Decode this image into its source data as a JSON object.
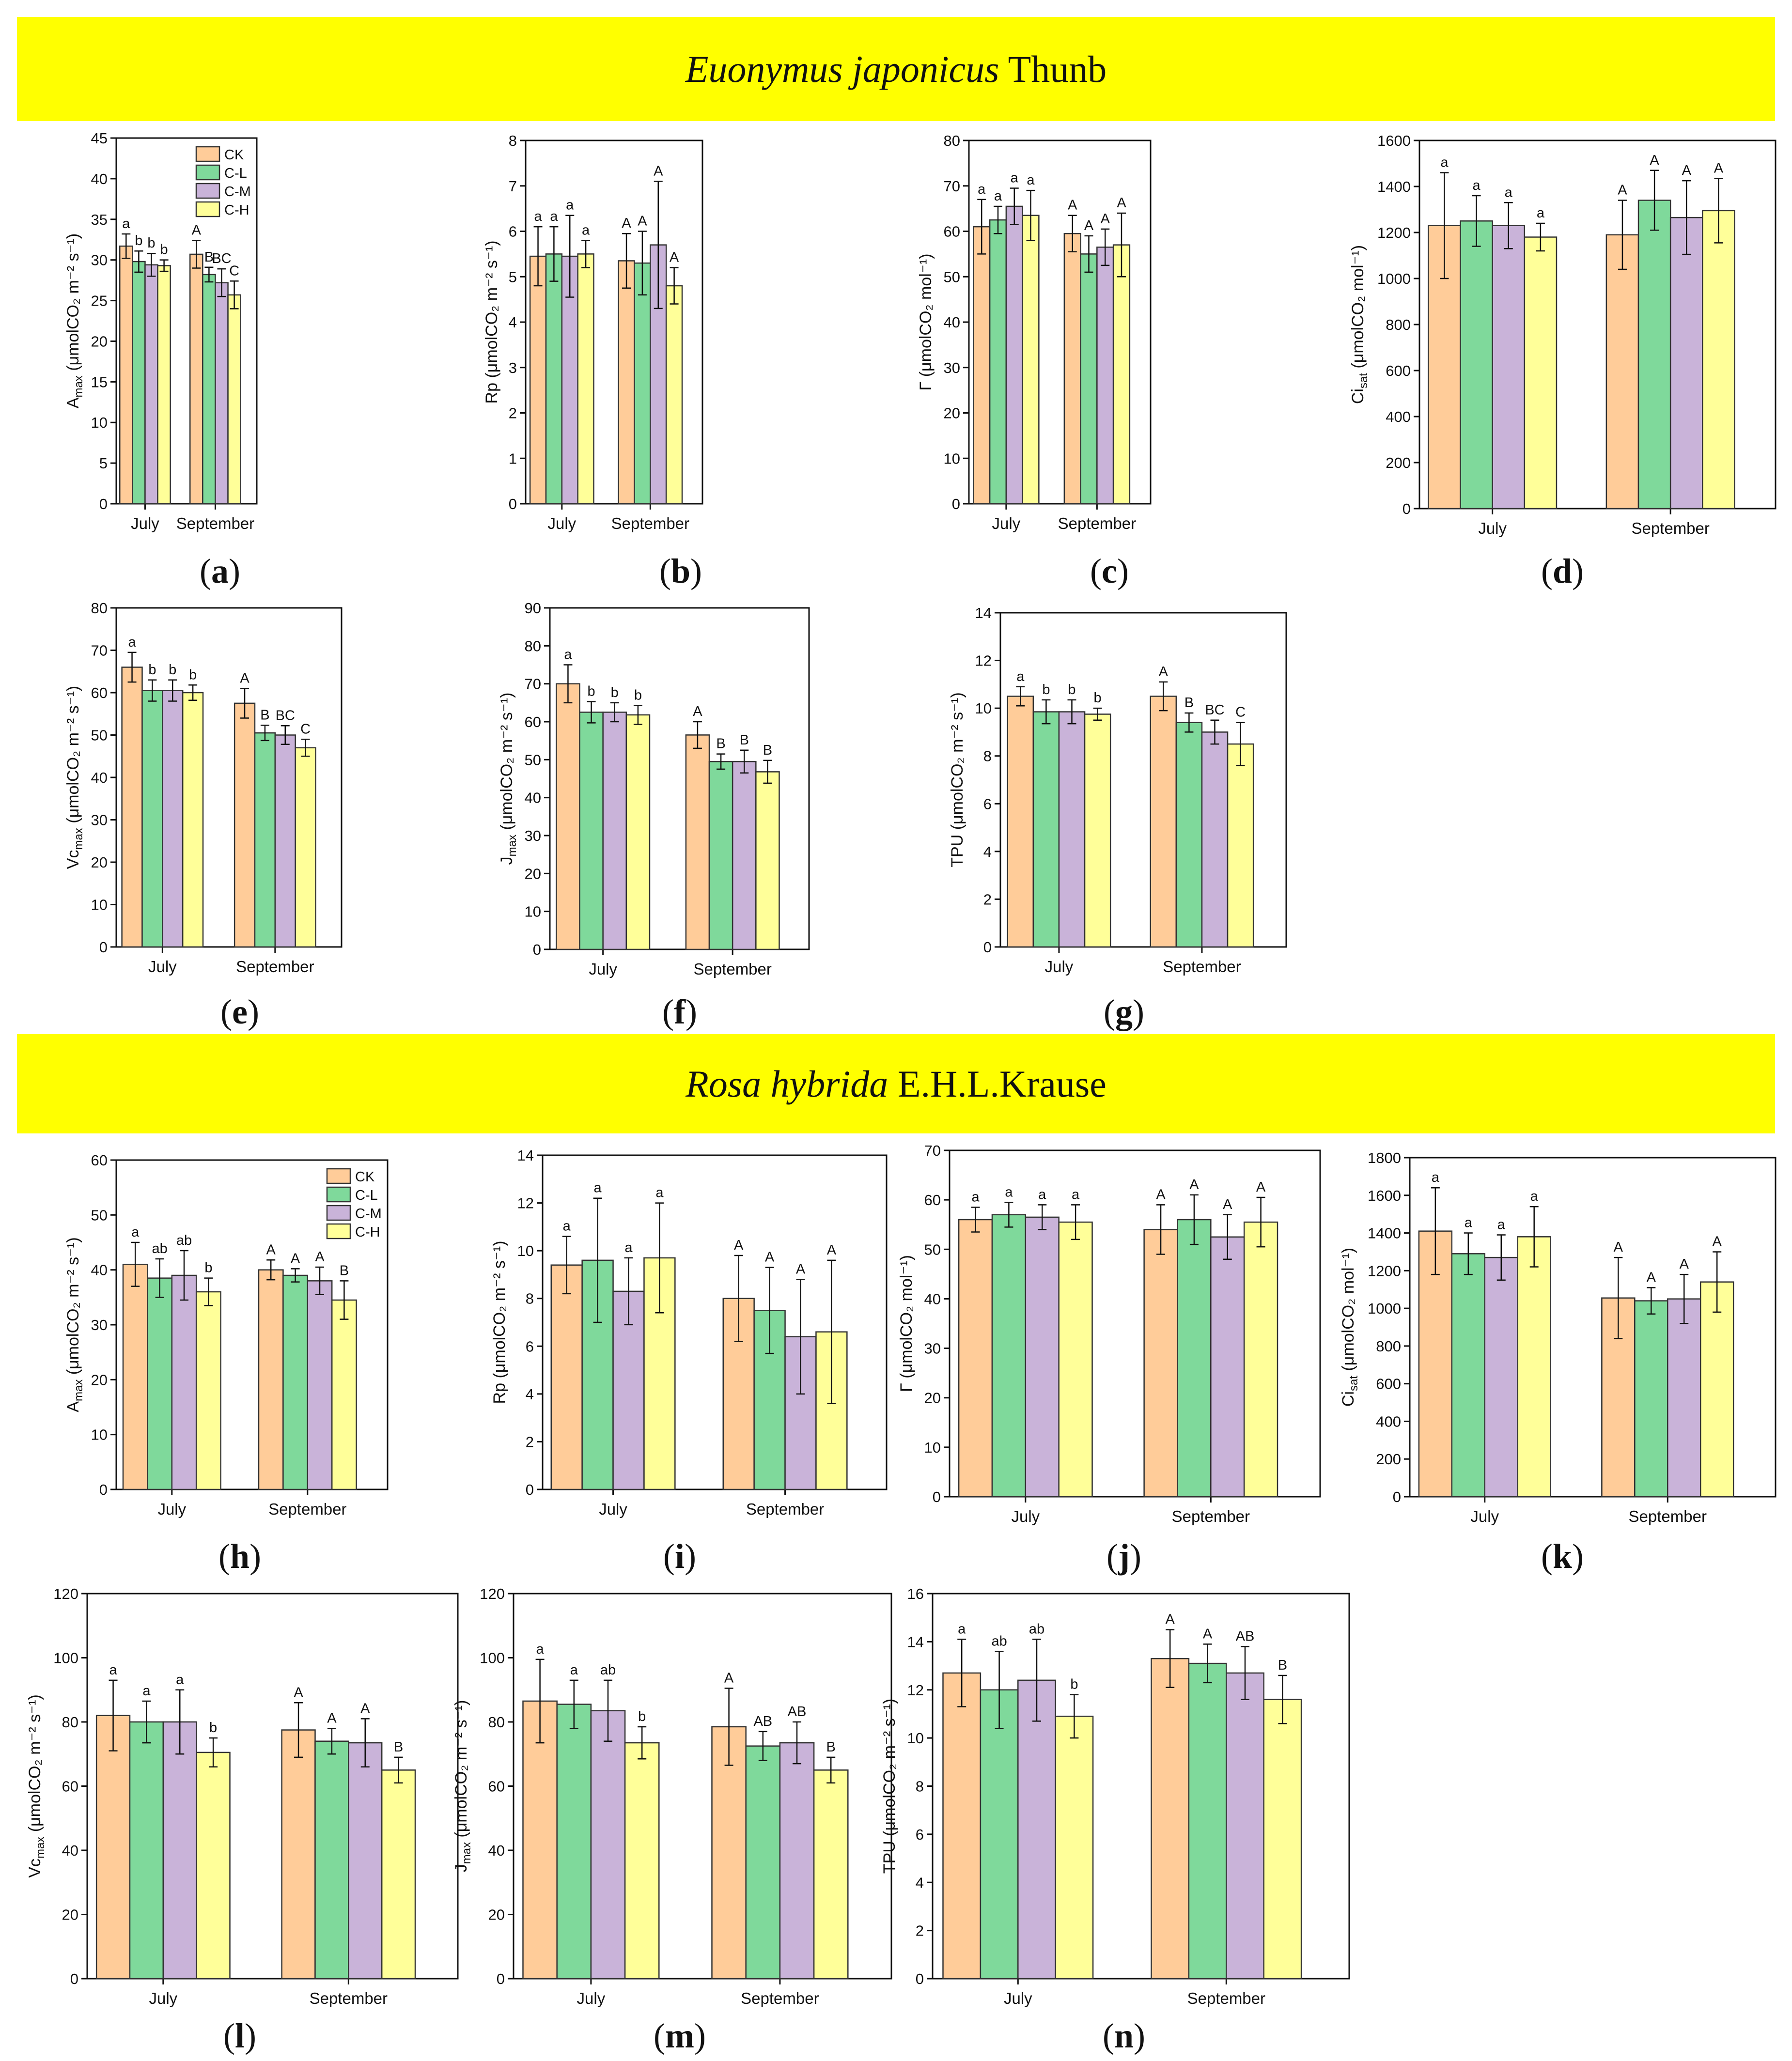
{
  "colors": {
    "CK": "#ffcc99",
    "C-L": "#7fd99b",
    "C-M": "#c9b3d9",
    "C-H": "#ffff99",
    "banner": "#ffff00"
  },
  "sections": [
    {
      "species": "Euonymus japonicus",
      "author": " Thunb"
    },
    {
      "species": "Rosa hybrida",
      "author": " E.H.L.Krause"
    }
  ],
  "chart_data": [
    {
      "id": "a",
      "label": "a",
      "type": "bar",
      "ylabel": "A_max (μmolCO₂ m⁻² s⁻¹)",
      "ylim": [
        0,
        45
      ],
      "yticks": [
        0,
        5,
        10,
        15,
        20,
        25,
        30,
        35,
        40,
        45
      ],
      "categories": [
        "July",
        "September"
      ],
      "legend": [
        "CK",
        "C-L",
        "C-M",
        "C-H"
      ],
      "legend_position": "top-right",
      "series": [
        {
          "name": "CK",
          "values": [
            31.7,
            30.7
          ],
          "errors": [
            1.5,
            1.7
          ],
          "letters": [
            "a",
            "A"
          ]
        },
        {
          "name": "C-L",
          "values": [
            29.8,
            28.2
          ],
          "errors": [
            1.3,
            0.9
          ],
          "letters": [
            "b",
            "B"
          ]
        },
        {
          "name": "C-M",
          "values": [
            29.4,
            27.2
          ],
          "errors": [
            1.4,
            1.7
          ],
          "letters": [
            "b",
            "BC"
          ]
        },
        {
          "name": "C-H",
          "values": [
            29.3,
            25.7
          ],
          "errors": [
            0.7,
            1.7
          ],
          "letters": [
            "b",
            "C"
          ]
        }
      ]
    },
    {
      "id": "b",
      "label": "b",
      "type": "bar",
      "ylabel": "Rp (μmolCO₂ m⁻² s⁻¹)",
      "ylim": [
        0,
        8
      ],
      "yticks": [
        0,
        1,
        2,
        3,
        4,
        5,
        6,
        7,
        8
      ],
      "categories": [
        "July",
        "September"
      ],
      "series": [
        {
          "name": "CK",
          "values": [
            5.45,
            5.35
          ],
          "errors": [
            0.65,
            0.6
          ],
          "letters": [
            "a",
            "A"
          ]
        },
        {
          "name": "C-L",
          "values": [
            5.5,
            5.3
          ],
          "errors": [
            0.6,
            0.7
          ],
          "letters": [
            "a",
            "A"
          ]
        },
        {
          "name": "C-M",
          "values": [
            5.45,
            5.7
          ],
          "errors": [
            0.9,
            1.4
          ],
          "letters": [
            "a",
            "A"
          ]
        },
        {
          "name": "C-H",
          "values": [
            5.5,
            4.8
          ],
          "errors": [
            0.3,
            0.4
          ],
          "letters": [
            "a",
            "A"
          ]
        }
      ]
    },
    {
      "id": "c",
      "label": "c",
      "type": "bar",
      "ylabel": "Γ (μmolCO₂ mol⁻¹)",
      "ylim": [
        0,
        80
      ],
      "yticks": [
        0,
        10,
        20,
        30,
        40,
        50,
        60,
        70,
        80
      ],
      "categories": [
        "July",
        "September"
      ],
      "series": [
        {
          "name": "CK",
          "values": [
            61,
            59.5
          ],
          "errors": [
            6,
            4
          ],
          "letters": [
            "a",
            "A"
          ]
        },
        {
          "name": "C-L",
          "values": [
            62.5,
            55
          ],
          "errors": [
            3,
            4
          ],
          "letters": [
            "a",
            "A"
          ]
        },
        {
          "name": "C-M",
          "values": [
            65.5,
            56.5
          ],
          "errors": [
            4,
            4
          ],
          "letters": [
            "a",
            "A"
          ]
        },
        {
          "name": "C-H",
          "values": [
            63.5,
            57
          ],
          "errors": [
            5.5,
            7
          ],
          "letters": [
            "a",
            "A"
          ]
        }
      ]
    },
    {
      "id": "d",
      "label": "d",
      "type": "bar",
      "ylabel": "Ci_sat (μmolCO₂ mol⁻¹)",
      "ylim": [
        0,
        1600
      ],
      "yticks": [
        0,
        200,
        400,
        600,
        800,
        1000,
        1200,
        1400,
        1600
      ],
      "categories": [
        "July",
        "September"
      ],
      "series": [
        {
          "name": "CK",
          "values": [
            1230,
            1190
          ],
          "errors": [
            230,
            150
          ],
          "letters": [
            "a",
            "A"
          ]
        },
        {
          "name": "C-L",
          "values": [
            1250,
            1340
          ],
          "errors": [
            110,
            130
          ],
          "letters": [
            "a",
            "A"
          ]
        },
        {
          "name": "C-M",
          "values": [
            1230,
            1265
          ],
          "errors": [
            100,
            160
          ],
          "letters": [
            "a",
            "A"
          ]
        },
        {
          "name": "C-H",
          "values": [
            1180,
            1295
          ],
          "errors": [
            60,
            140
          ],
          "letters": [
            "a",
            "A"
          ]
        }
      ]
    },
    {
      "id": "e",
      "label": "e",
      "type": "bar",
      "ylabel": "Vc_max (μmolCO₂ m⁻² s⁻¹)",
      "ylim": [
        0,
        80
      ],
      "yticks": [
        0,
        10,
        20,
        30,
        40,
        50,
        60,
        70,
        80
      ],
      "categories": [
        "July",
        "September"
      ],
      "series": [
        {
          "name": "CK",
          "values": [
            66,
            57.5
          ],
          "errors": [
            3.5,
            3.5
          ],
          "letters": [
            "a",
            "A"
          ]
        },
        {
          "name": "C-L",
          "values": [
            60.5,
            50.5
          ],
          "errors": [
            2.5,
            1.8
          ],
          "letters": [
            "b",
            "B"
          ]
        },
        {
          "name": "C-M",
          "values": [
            60.5,
            50
          ],
          "errors": [
            2.5,
            2.2
          ],
          "letters": [
            "b",
            "BC"
          ]
        },
        {
          "name": "C-H",
          "values": [
            60,
            47
          ],
          "errors": [
            1.8,
            2
          ],
          "letters": [
            "b",
            "C"
          ]
        }
      ]
    },
    {
      "id": "f",
      "label": "f",
      "type": "bar",
      "ylabel": "J_max (μmolCO₂ m⁻² s⁻¹)",
      "ylim": [
        0,
        90
      ],
      "yticks": [
        0,
        10,
        20,
        30,
        40,
        50,
        60,
        70,
        80,
        90
      ],
      "categories": [
        "July",
        "September"
      ],
      "series": [
        {
          "name": "CK",
          "values": [
            70,
            56.5
          ],
          "errors": [
            5,
            3.5
          ],
          "letters": [
            "a",
            "A"
          ]
        },
        {
          "name": "C-L",
          "values": [
            62.5,
            49.5
          ],
          "errors": [
            2.8,
            2
          ],
          "letters": [
            "b",
            "B"
          ]
        },
        {
          "name": "C-M",
          "values": [
            62.5,
            49.5
          ],
          "errors": [
            2.5,
            3
          ],
          "letters": [
            "b",
            "B"
          ]
        },
        {
          "name": "C-H",
          "values": [
            61.8,
            46.8
          ],
          "errors": [
            2.5,
            3
          ],
          "letters": [
            "b",
            "B"
          ]
        }
      ]
    },
    {
      "id": "g",
      "label": "g",
      "type": "bar",
      "ylabel": "TPU (μmolCO₂ m⁻² s⁻¹)",
      "ylim": [
        0,
        14
      ],
      "yticks": [
        0,
        2,
        4,
        6,
        8,
        10,
        12,
        14
      ],
      "categories": [
        "July",
        "September"
      ],
      "series": [
        {
          "name": "CK",
          "values": [
            10.5,
            10.5
          ],
          "errors": [
            0.4,
            0.6
          ],
          "letters": [
            "a",
            "A"
          ]
        },
        {
          "name": "C-L",
          "values": [
            9.85,
            9.4
          ],
          "errors": [
            0.5,
            0.4
          ],
          "letters": [
            "b",
            "B"
          ]
        },
        {
          "name": "C-M",
          "values": [
            9.85,
            9.0
          ],
          "errors": [
            0.5,
            0.5
          ],
          "letters": [
            "b",
            "BC"
          ]
        },
        {
          "name": "C-H",
          "values": [
            9.75,
            8.5
          ],
          "errors": [
            0.25,
            0.9
          ],
          "letters": [
            "b",
            "C"
          ]
        }
      ]
    },
    {
      "id": "h",
      "label": "h",
      "type": "bar",
      "ylabel": "A_max (μmolCO₂ m⁻² s⁻¹)",
      "ylim": [
        0,
        60
      ],
      "yticks": [
        0,
        10,
        20,
        30,
        40,
        50,
        60
      ],
      "categories": [
        "July",
        "September"
      ],
      "legend": [
        "CK",
        "C-L",
        "C-M",
        "C-H"
      ],
      "legend_position": "top-right",
      "series": [
        {
          "name": "CK",
          "values": [
            41,
            40
          ],
          "errors": [
            4,
            1.8
          ],
          "letters": [
            "a",
            "A"
          ]
        },
        {
          "name": "C-L",
          "values": [
            38.5,
            39
          ],
          "errors": [
            3.5,
            1.2
          ],
          "letters": [
            "ab",
            "A"
          ]
        },
        {
          "name": "C-M",
          "values": [
            39,
            38
          ],
          "errors": [
            4.5,
            2.5
          ],
          "letters": [
            "ab",
            "A"
          ]
        },
        {
          "name": "C-H",
          "values": [
            36,
            34.5
          ],
          "errors": [
            2.5,
            3.5
          ],
          "letters": [
            "b",
            "B"
          ]
        }
      ]
    },
    {
      "id": "i",
      "label": "i",
      "type": "bar",
      "ylabel": "Rp (μmolCO₂ m⁻² s⁻¹)",
      "ylim": [
        0,
        14
      ],
      "yticks": [
        0,
        2,
        4,
        6,
        8,
        10,
        12,
        14
      ],
      "categories": [
        "July",
        "September"
      ],
      "series": [
        {
          "name": "CK",
          "values": [
            9.4,
            8
          ],
          "errors": [
            1.2,
            1.8
          ],
          "letters": [
            "a",
            "A"
          ]
        },
        {
          "name": "C-L",
          "values": [
            9.6,
            7.5
          ],
          "errors": [
            2.6,
            1.8
          ],
          "letters": [
            "a",
            "A"
          ]
        },
        {
          "name": "C-M",
          "values": [
            8.3,
            6.4
          ],
          "errors": [
            1.4,
            2.4
          ],
          "letters": [
            "a",
            "A"
          ]
        },
        {
          "name": "C-H",
          "values": [
            9.7,
            6.6
          ],
          "errors": [
            2.3,
            3.0
          ],
          "letters": [
            "a",
            "A"
          ]
        }
      ]
    },
    {
      "id": "j",
      "label": "j",
      "type": "bar",
      "ylabel": "Γ (μmolCO₂ mol⁻¹)",
      "ylim": [
        0,
        70
      ],
      "yticks": [
        0,
        10,
        20,
        30,
        40,
        50,
        60,
        70
      ],
      "categories": [
        "July",
        "September"
      ],
      "series": [
        {
          "name": "CK",
          "values": [
            56,
            54
          ],
          "errors": [
            2.5,
            5
          ],
          "letters": [
            "a",
            "A"
          ]
        },
        {
          "name": "C-L",
          "values": [
            57,
            56
          ],
          "errors": [
            2.5,
            5
          ],
          "letters": [
            "a",
            "A"
          ]
        },
        {
          "name": "C-M",
          "values": [
            56.5,
            52.5
          ],
          "errors": [
            2.5,
            4.5
          ],
          "letters": [
            "a",
            "A"
          ]
        },
        {
          "name": "C-H",
          "values": [
            55.5,
            55.5
          ],
          "errors": [
            3.5,
            5
          ],
          "letters": [
            "a",
            "A"
          ]
        }
      ]
    },
    {
      "id": "k",
      "label": "k",
      "type": "bar",
      "ylabel": "Ci_sat (μmolCO₂ mol⁻¹)",
      "ylim": [
        0,
        1800
      ],
      "yticks": [
        0,
        200,
        400,
        600,
        800,
        1000,
        1200,
        1400,
        1600,
        1800
      ],
      "categories": [
        "July",
        "September"
      ],
      "series": [
        {
          "name": "CK",
          "values": [
            1410,
            1055
          ],
          "errors": [
            230,
            215
          ],
          "letters": [
            "a",
            "A"
          ]
        },
        {
          "name": "C-L",
          "values": [
            1290,
            1040
          ],
          "errors": [
            110,
            70
          ],
          "letters": [
            "a",
            "A"
          ]
        },
        {
          "name": "C-M",
          "values": [
            1270,
            1050
          ],
          "errors": [
            120,
            130
          ],
          "letters": [
            "a",
            "A"
          ]
        },
        {
          "name": "C-H",
          "values": [
            1380,
            1140
          ],
          "errors": [
            160,
            160
          ],
          "letters": [
            "a",
            "A"
          ]
        }
      ]
    },
    {
      "id": "l",
      "label": "l",
      "type": "bar",
      "ylabel": "Vc_max (μmolCO₂ m⁻² s⁻¹)",
      "ylim": [
        0,
        120
      ],
      "yticks": [
        0,
        20,
        40,
        60,
        80,
        100,
        120
      ],
      "categories": [
        "July",
        "September"
      ],
      "series": [
        {
          "name": "CK",
          "values": [
            82,
            77.5
          ],
          "errors": [
            11,
            8.5
          ],
          "letters": [
            "a",
            "A"
          ]
        },
        {
          "name": "C-L",
          "values": [
            80,
            74
          ],
          "errors": [
            6.5,
            4
          ],
          "letters": [
            "a",
            "A"
          ]
        },
        {
          "name": "C-M",
          "values": [
            80,
            73.5
          ],
          "errors": [
            10,
            7.5
          ],
          "letters": [
            "a",
            "A"
          ]
        },
        {
          "name": "C-H",
          "values": [
            70.5,
            65
          ],
          "errors": [
            4.5,
            4
          ],
          "letters": [
            "b",
            "B"
          ]
        }
      ]
    },
    {
      "id": "m",
      "label": "m",
      "type": "bar",
      "ylabel": "J_max (μmolCO₂ m⁻² s⁻¹)",
      "ylim": [
        0,
        120
      ],
      "yticks": [
        0,
        20,
        40,
        60,
        80,
        100,
        120
      ],
      "categories": [
        "July",
        "September"
      ],
      "series": [
        {
          "name": "CK",
          "values": [
            86.5,
            78.5
          ],
          "errors": [
            13,
            12
          ],
          "letters": [
            "a",
            "A"
          ]
        },
        {
          "name": "C-L",
          "values": [
            85.5,
            72.5
          ],
          "errors": [
            7.5,
            4.5
          ],
          "letters": [
            "a",
            "AB"
          ]
        },
        {
          "name": "C-M",
          "values": [
            83.5,
            73.5
          ],
          "errors": [
            9.5,
            6.5
          ],
          "letters": [
            "ab",
            "AB"
          ]
        },
        {
          "name": "C-H",
          "values": [
            73.5,
            65
          ],
          "errors": [
            5,
            4
          ],
          "letters": [
            "b",
            "B"
          ]
        }
      ]
    },
    {
      "id": "n",
      "label": "n",
      "type": "bar",
      "ylabel": "TPU (μmolCO₂ m⁻² s⁻¹)",
      "ylim": [
        0,
        16
      ],
      "yticks": [
        0,
        2,
        4,
        6,
        8,
        10,
        12,
        14,
        16
      ],
      "categories": [
        "July",
        "September"
      ],
      "series": [
        {
          "name": "CK",
          "values": [
            12.7,
            13.3
          ],
          "errors": [
            1.4,
            1.2
          ],
          "letters": [
            "a",
            "A"
          ]
        },
        {
          "name": "C-L",
          "values": [
            12,
            13.1
          ],
          "errors": [
            1.6,
            0.8
          ],
          "letters": [
            "ab",
            "A"
          ]
        },
        {
          "name": "C-M",
          "values": [
            12.4,
            12.7
          ],
          "errors": [
            1.7,
            1.1
          ],
          "letters": [
            "ab",
            "AB"
          ]
        },
        {
          "name": "C-H",
          "values": [
            10.9,
            11.6
          ],
          "errors": [
            0.9,
            1.0
          ],
          "letters": [
            "b",
            "B"
          ]
        }
      ]
    }
  ]
}
